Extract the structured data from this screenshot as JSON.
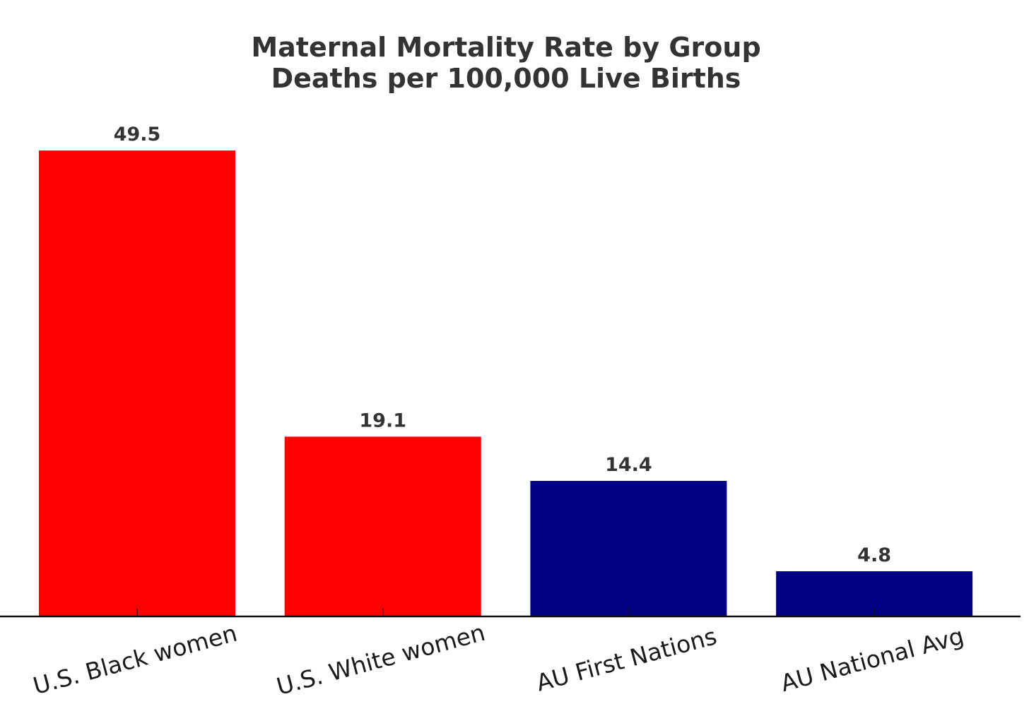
{
  "chart_data": {
    "type": "bar",
    "title": [
      "Maternal Mortality Rate by Group",
      "Deaths per 100,000 Live Births"
    ],
    "categories": [
      "U.S. Black women",
      "U.S. White women",
      "AU First Nations",
      "AU National Avg"
    ],
    "values": [
      49.5,
      19.1,
      14.4,
      4.8
    ],
    "value_labels": [
      "49.5",
      "19.1",
      "14.4",
      "4.8"
    ],
    "colors": [
      "#ff0000",
      "#ff0000",
      "#000080",
      "#000080"
    ],
    "xlabel": "",
    "ylabel": "",
    "ylim": [
      0,
      52
    ],
    "grid": false,
    "legend": "none"
  }
}
